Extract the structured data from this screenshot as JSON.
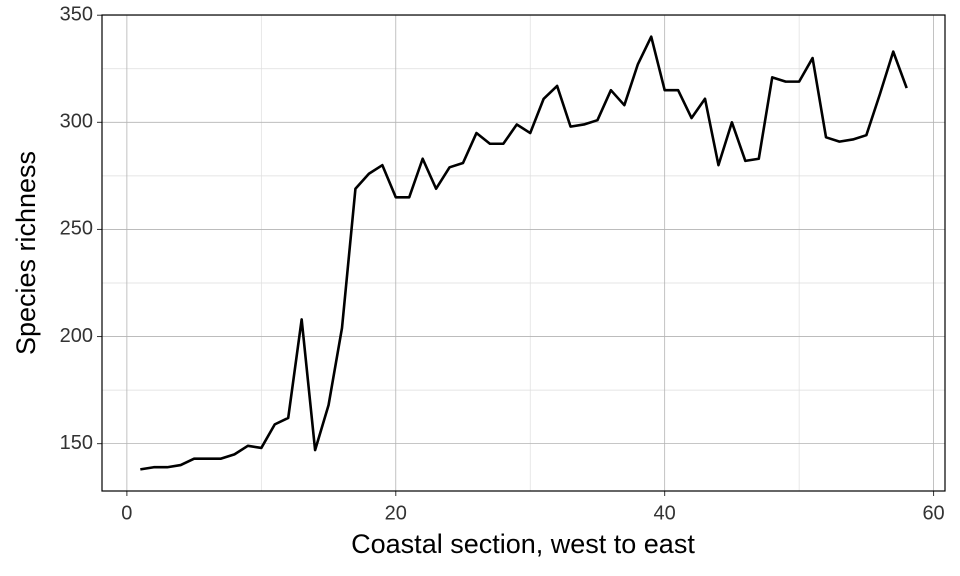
{
  "chart_data": {
    "type": "line",
    "x_label": "Coastal section, west to east",
    "y_label": "Species richness",
    "x": [
      1,
      2,
      3,
      4,
      5,
      6,
      7,
      8,
      9,
      10,
      11,
      12,
      13,
      14,
      15,
      16,
      17,
      18,
      19,
      20,
      21,
      22,
      23,
      24,
      25,
      26,
      27,
      28,
      29,
      30,
      31,
      32,
      33,
      34,
      35,
      36,
      37,
      38,
      39,
      40,
      41,
      42,
      43,
      44,
      45,
      46,
      47,
      48,
      49,
      50,
      51,
      52,
      53,
      54,
      55,
      56,
      57,
      58
    ],
    "series": [
      {
        "color": "#000000",
        "values": [
          138,
          139,
          139,
          140,
          143,
          143,
          143,
          145,
          149,
          148,
          159,
          162,
          208,
          147,
          168,
          204,
          269,
          276,
          280,
          265,
          265,
          283,
          269,
          279,
          281,
          295,
          290,
          290,
          299,
          295,
          311,
          317,
          298,
          299,
          301,
          315,
          308,
          327,
          340,
          315,
          315,
          302,
          311,
          280,
          300,
          282,
          283,
          321,
          319,
          319,
          330,
          293,
          291,
          292,
          294,
          313,
          333,
          316
        ]
      }
    ],
    "xlim": [
      -1.85,
      60.85
    ],
    "xticks": [
      0,
      20,
      40,
      60
    ],
    "ylim": [
      127.9,
      350.1
    ],
    "yticks": [
      150,
      200,
      250,
      300,
      350
    ],
    "grid": true
  }
}
